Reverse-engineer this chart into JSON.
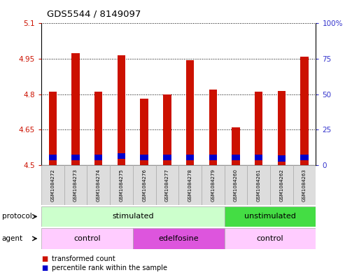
{
  "title": "GDS5544 / 8149097",
  "samples": [
    "GSM1084272",
    "GSM1084273",
    "GSM1084274",
    "GSM1084275",
    "GSM1084276",
    "GSM1084277",
    "GSM1084278",
    "GSM1084279",
    "GSM1084260",
    "GSM1084261",
    "GSM1084262",
    "GSM1084263"
  ],
  "transformed_count": [
    4.81,
    4.975,
    4.81,
    4.965,
    4.78,
    4.8,
    4.945,
    4.82,
    4.66,
    4.81,
    4.815,
    4.96
  ],
  "percentile_rank_bottom": [
    4.52,
    4.52,
    4.52,
    4.525,
    4.52,
    4.52,
    4.52,
    4.52,
    4.52,
    4.52,
    4.515,
    4.52
  ],
  "percentile_rank_height": [
    0.025,
    0.025,
    0.025,
    0.025,
    0.025,
    0.025,
    0.025,
    0.025,
    0.025,
    0.025,
    0.025,
    0.025
  ],
  "ylim_left": [
    4.5,
    5.1
  ],
  "ylim_right": [
    0,
    100
  ],
  "yticks_left": [
    4.5,
    4.65,
    4.8,
    4.95,
    5.1
  ],
  "yticks_right": [
    0,
    25,
    50,
    75,
    100
  ],
  "ytick_labels_left": [
    "4.5",
    "4.65",
    "4.8",
    "4.95",
    "5.1"
  ],
  "ytick_labels_right": [
    "0",
    "25",
    "50",
    "75",
    "100%"
  ],
  "bar_bottom": 4.5,
  "bar_color_red": "#cc1100",
  "bar_color_blue": "#0000cc",
  "bar_width": 0.35,
  "protocol_groups": [
    {
      "label": "stimulated",
      "start": 0,
      "end": 8,
      "color": "#ccffcc"
    },
    {
      "label": "unstimulated",
      "start": 8,
      "end": 12,
      "color": "#44dd44"
    }
  ],
  "agent_groups": [
    {
      "label": "control",
      "start": 0,
      "end": 4,
      "color": "#ffccff"
    },
    {
      "label": "edelfosine",
      "start": 4,
      "end": 8,
      "color": "#dd55dd"
    },
    {
      "label": "control",
      "start": 8,
      "end": 12,
      "color": "#ffccff"
    }
  ],
  "legend_items": [
    {
      "label": "transformed count",
      "color": "#cc1100"
    },
    {
      "label": "percentile rank within the sample",
      "color": "#0000cc"
    }
  ],
  "tick_label_color_left": "#cc1100",
  "tick_label_color_right": "#3333cc"
}
